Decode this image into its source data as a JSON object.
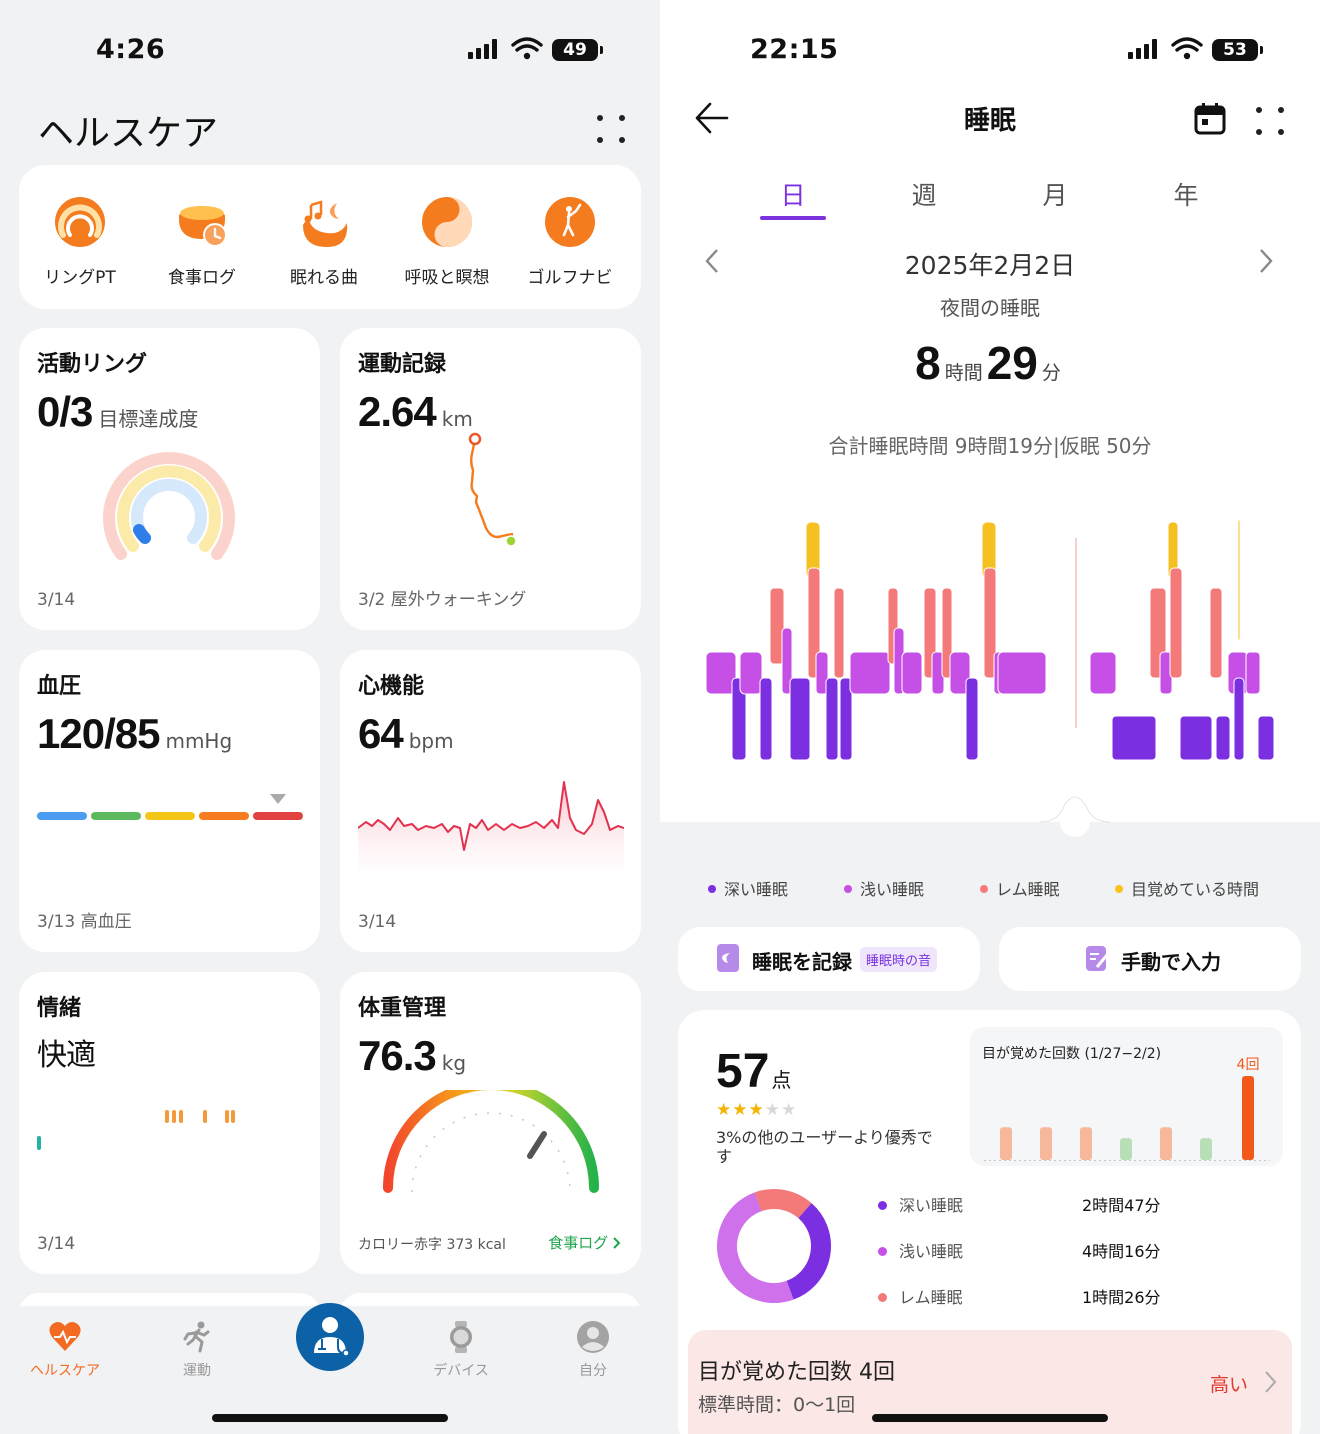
{
  "left": {
    "status": {
      "time": "4:26",
      "battery": "49"
    },
    "title": "ヘルスケア",
    "shortcuts": [
      {
        "label": "リングPT",
        "icon": "ring-pt-icon"
      },
      {
        "label": "食事ログ",
        "icon": "meal-log-icon"
      },
      {
        "label": "眠れる曲",
        "icon": "sleep-music-icon"
      },
      {
        "label": "呼吸と瞑想",
        "icon": "breath-meditation-icon"
      },
      {
        "label": "ゴルフナビ",
        "icon": "golf-navi-icon"
      }
    ],
    "activity": {
      "title": "活動リング",
      "value": "0/3",
      "unit": "目標達成度",
      "date": "3/14"
    },
    "exercise": {
      "title": "運動記録",
      "value": "2.64",
      "unit": "km",
      "footer": "3/2 屋外ウォーキング"
    },
    "blood_pressure": {
      "title": "血圧",
      "value": "120/85",
      "unit": "mmHg",
      "footer": "3/13 高血圧",
      "scale_colors": [
        "#4a9df0",
        "#5cb85c",
        "#f5c518",
        "#f57c1f",
        "#e0433f"
      ],
      "level_index": 4
    },
    "heart": {
      "title": "心機能",
      "value": "64",
      "unit": "bpm",
      "date": "3/14"
    },
    "mood": {
      "title": "情緒",
      "value": "快適",
      "date": "3/14"
    },
    "weight": {
      "title": "体重管理",
      "value": "76.3",
      "unit": "kg",
      "footer": "カロリー赤字 373 kcal",
      "link": "食事ログ"
    },
    "nav": [
      {
        "label": "ヘルスケア",
        "icon": "heart-icon",
        "active": true
      },
      {
        "label": "運動",
        "icon": "runner-icon",
        "active": false
      },
      {
        "label": "デバイス",
        "icon": "watch-icon",
        "active": false
      },
      {
        "label": "自分",
        "icon": "profile-icon",
        "active": false
      }
    ]
  },
  "right": {
    "status": {
      "time": "22:15",
      "battery": "53"
    },
    "title": "睡眠",
    "tabs": [
      "日",
      "週",
      "月",
      "年"
    ],
    "active_tab": 0,
    "date": "2025年2月2日",
    "subtitle": "夜間の睡眠",
    "duration": {
      "hours": "8",
      "hours_unit": "時間",
      "minutes": "29",
      "minutes_unit": "分"
    },
    "total": "合計睡眠時間 9時間19分|仮眠 50分",
    "legend": [
      {
        "label": "深い睡眠",
        "color": "#7c2fe0"
      },
      {
        "label": "浅い睡眠",
        "color": "#c64fe6"
      },
      {
        "label": "レム睡眠",
        "color": "#f47a7a"
      },
      {
        "label": "目覚めている時間",
        "color": "#f7c21a"
      }
    ],
    "record_button": {
      "label": "睡眠を記録",
      "tag": "睡眠時の音"
    },
    "manual_button": {
      "label": "手動で入力"
    },
    "score": {
      "value": "57",
      "unit": "点",
      "stars": 3,
      "max_stars": 5,
      "text": "3%の他のユーザーより優秀です"
    },
    "wake_chart": {
      "title": "目が覚めた回数 (1/27−2/2)",
      "highlight_label": "4回",
      "values": [
        3,
        3,
        3,
        2,
        3,
        2,
        4
      ],
      "colors": [
        "#f6b79a",
        "#f6b79a",
        "#f6b79a",
        "#b8dfb6",
        "#f6b79a",
        "#b8dfb6",
        "#f25a1c"
      ]
    },
    "stages": [
      {
        "label": "深い睡眠",
        "value": "2時間47分",
        "color": "#7c2fe0",
        "percent": 33
      },
      {
        "label": "浅い睡眠",
        "value": "4時間16分",
        "color": "#c64fe6",
        "percent": 50
      },
      {
        "label": "レム睡眠",
        "value": "1時間26分",
        "color": "#f47a7a",
        "percent": 17
      }
    ],
    "wake_info": {
      "title": "目が覚めた回数 4回",
      "standard": "標準時間：0〜1回",
      "level": "高い"
    }
  }
}
